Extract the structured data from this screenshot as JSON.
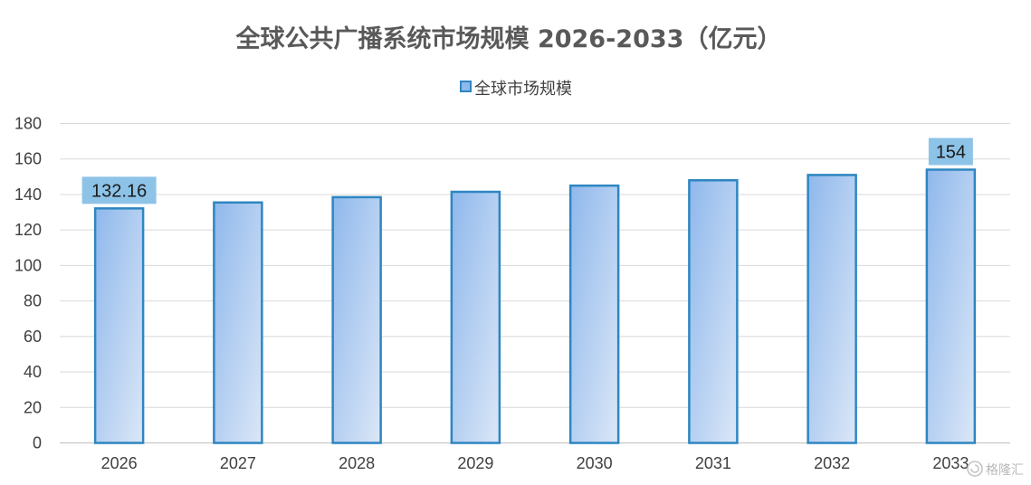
{
  "chart_data": {
    "type": "bar",
    "title": "全球公共广播系统市场规模 2026-2033（亿元）",
    "legend": {
      "position": "top",
      "entries": [
        "全球市场规模"
      ]
    },
    "categories": [
      "2026",
      "2027",
      "2028",
      "2029",
      "2030",
      "2031",
      "2032",
      "2033"
    ],
    "series": [
      {
        "name": "全球市场规模",
        "values": [
          132.16,
          135.5,
          138.5,
          141.5,
          145,
          148,
          151,
          154
        ]
      }
    ],
    "data_labels": [
      {
        "category_index": 0,
        "text": "132.16"
      },
      {
        "category_index": 7,
        "text": "154"
      }
    ],
    "ylim": [
      0,
      180
    ],
    "yticks": [
      0,
      20,
      40,
      60,
      80,
      100,
      120,
      140,
      160,
      180
    ],
    "grid": "horizontal",
    "colors": {
      "bar_fill_start": "#8fb8ec",
      "bar_fill_end": "#dbe7f7",
      "bar_stroke": "#2e86c1",
      "label_bg": "#8ec3e8",
      "grid": "#d9d9d9",
      "axis": "#bfbfbf"
    }
  },
  "watermark": {
    "text": "格隆汇",
    "icon": "glh-logo-icon"
  }
}
